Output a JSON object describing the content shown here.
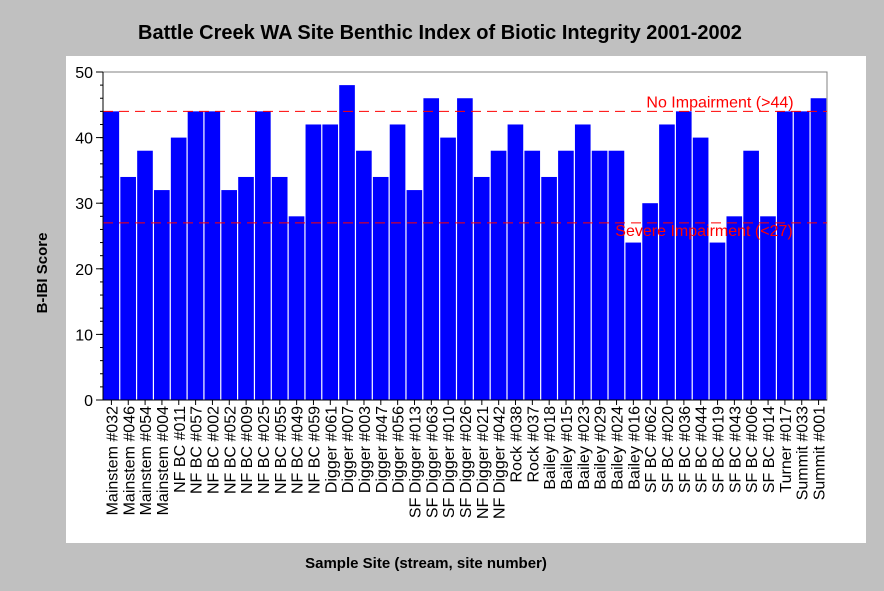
{
  "chart_data": {
    "type": "bar",
    "title": "Battle Creek WA Site Benthic Index of Biotic Integrity 2001-2002",
    "xlabel": "Sample Site (stream, site number)",
    "ylabel": "B-IBI Score",
    "ylim": [
      0,
      50
    ],
    "yticks": [
      0,
      10,
      20,
      30,
      40,
      50
    ],
    "bar_color": "#0000ff",
    "categories": [
      "Mainstem #032",
      "Mainstem #046",
      "Mainstem #054",
      "Mainstem #004",
      "NF BC #011",
      "NF BC #057",
      "NF BC #002",
      "NF BC #052",
      "NF BC #009",
      "NF BC #025",
      "NF BC #055",
      "NF BC #049",
      "NF BC #059",
      "Digger #061",
      "Digger #007",
      "Digger #003",
      "Digger #047",
      "Digger #056",
      "SF Digger #013",
      "SF Digger #063",
      "SF Digger #010",
      "SF Digger #026",
      "NF Digger #021",
      "NF Digger #042",
      "Rock #038",
      "Rock #037",
      "Bailey #018",
      "Bailey #015",
      "Bailey #023",
      "Bailey #029",
      "Bailey #024",
      "Bailey #016",
      "SF BC #062",
      "SF BC #020",
      "SF BC #036",
      "SF BC #044",
      "SF BC #019",
      "SF BC #043",
      "SF BC #006",
      "SF BC #014",
      "Turner #017",
      "Summit #033",
      "Summit #001"
    ],
    "values": [
      44,
      34,
      38,
      32,
      40,
      44,
      44,
      32,
      34,
      44,
      34,
      28,
      42,
      42,
      48,
      38,
      34,
      42,
      32,
      46,
      40,
      46,
      34,
      38,
      42,
      38,
      34,
      38,
      42,
      38,
      38,
      24,
      30,
      42,
      44,
      40,
      24,
      28,
      38,
      28,
      44,
      44,
      46
    ],
    "reference_lines": [
      {
        "value": 44,
        "label": "No Impairment  (>44)",
        "color": "#ff0000"
      },
      {
        "value": 27,
        "label": "Severe Impairment (<27)",
        "color": "#ff0000"
      }
    ]
  }
}
